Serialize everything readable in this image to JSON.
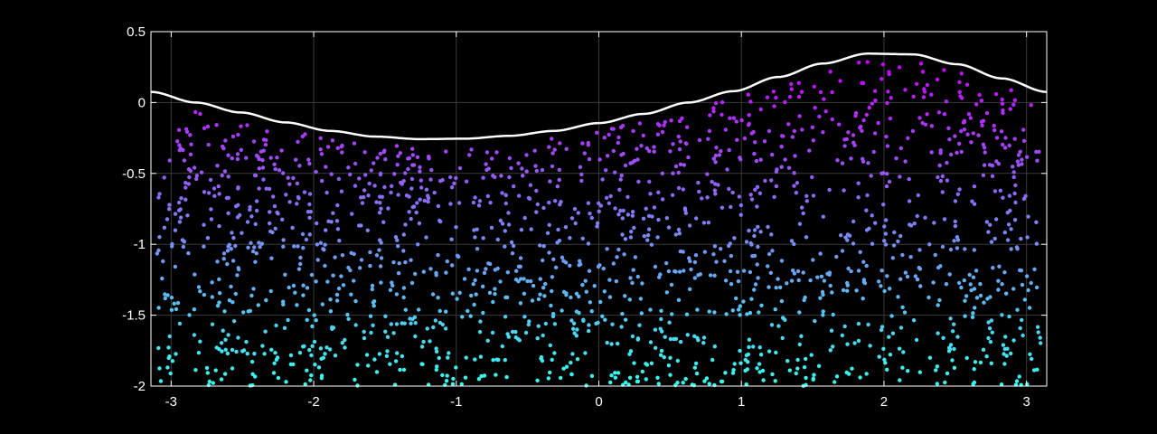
{
  "chart_data": {
    "type": "scatter",
    "title": "",
    "xlabel": "",
    "ylabel": "",
    "xlim": [
      -3.1416,
      3.1416
    ],
    "ylim": [
      -2,
      0.5
    ],
    "grid": true,
    "background_color": "#000000",
    "axis_color": "#ffffff",
    "grid_color": "#3a3a3a",
    "x_ticks": [
      -3,
      -2,
      -1,
      0,
      1,
      2,
      3
    ],
    "x_tick_labels": [
      "-3",
      "-2",
      "-1",
      "0",
      "1",
      "2",
      "3"
    ],
    "y_ticks": [
      0.5,
      0,
      -0.5,
      -1,
      -1.5,
      -2
    ],
    "y_tick_labels": [
      "0.5",
      "0",
      "-0.5",
      "-1",
      "-1.5",
      "-2"
    ],
    "curve": {
      "color": "#ffffff",
      "x": [
        -3.1416,
        -2.8274,
        -2.5133,
        -2.1991,
        -1.885,
        -1.5708,
        -1.2566,
        -0.9425,
        -0.6283,
        -0.3142,
        0,
        0.3142,
        0.6283,
        0.9425,
        1.2566,
        1.5708,
        1.885,
        2.1991,
        2.5133,
        2.8274,
        3.1416
      ],
      "y": [
        0.075,
        0,
        -0.07,
        -0.14,
        -0.2,
        -0.24,
        -0.258,
        -0.255,
        -0.235,
        -0.2,
        -0.145,
        -0.08,
        0,
        0.08,
        0.18,
        0.275,
        0.345,
        0.34,
        0.27,
        0.17,
        0.075
      ]
    },
    "points": {
      "count": 1800,
      "color_low": "#33ffee",
      "color_high": "#cc00ff",
      "x_range": [
        -3.1,
        3.1
      ],
      "y_min": -2,
      "gap_below_curve": 0.05,
      "marker_radius": 2.2
    }
  }
}
